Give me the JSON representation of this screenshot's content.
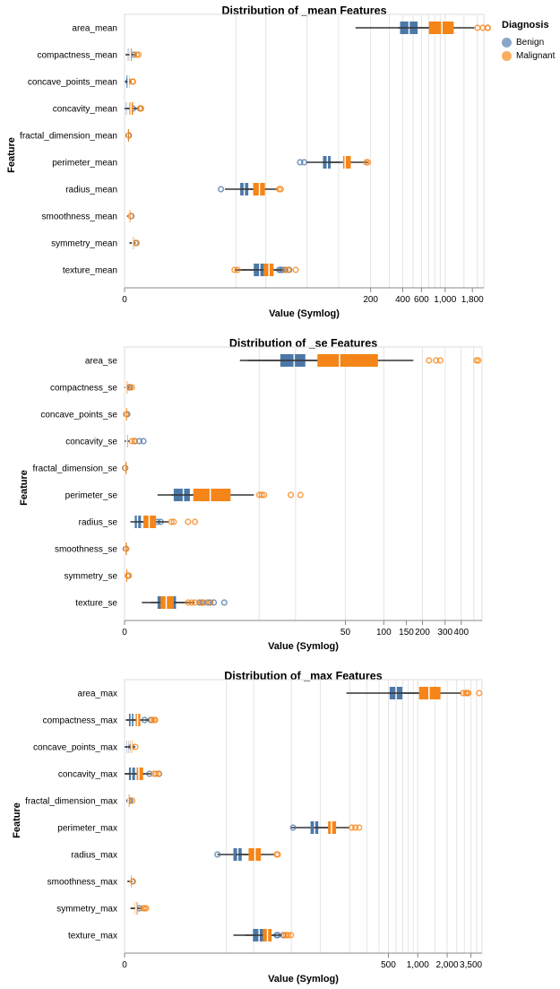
{
  "legend": {
    "title": "Diagnosis",
    "items": [
      {
        "label": "Benign",
        "color": "#4c78a8"
      },
      {
        "label": "Malignant",
        "color": "#f58518"
      }
    ]
  },
  "colors": {
    "benign": "#4c78a8",
    "malignant": "#f58518"
  },
  "chart_data": [
    {
      "type": "boxplot",
      "title": "Distribution of _mean Features",
      "xlabel": "Value (Symlog)",
      "ylabel": "Feature",
      "x_scale": "symlog",
      "x_ticks": [
        "0",
        "200",
        "400",
        "600",
        "1,000",
        "1,800"
      ],
      "grid": true,
      "categories": [
        "area_mean",
        "compactness_mean",
        "concave_points_mean",
        "concavity_mean",
        "fractal_dimension_mean",
        "perimeter_mean",
        "radius_mean",
        "smoothness_mean",
        "symmetry_mean",
        "texture_mean"
      ],
      "series": [
        {
          "name": "Benign",
          "boxes": [
            {
              "min": 144,
              "q1": 378,
              "median": 459,
              "q3": 552,
              "max": 992,
              "outliers": []
            },
            {
              "min": 0.02,
              "q1": 0.06,
              "median": 0.08,
              "q3": 0.1,
              "max": 0.2,
              "outliers": [
                0.22
              ]
            },
            {
              "min": 0,
              "q1": 0.015,
              "median": 0.025,
              "q3": 0.033,
              "max": 0.07,
              "outliers": [
                0.085
              ]
            },
            {
              "min": 0,
              "q1": 0.02,
              "median": 0.04,
              "q3": 0.06,
              "max": 0.13,
              "outliers": [
                0.2,
                0.4
              ]
            },
            {
              "min": 0.05,
              "q1": 0.059,
              "median": 0.062,
              "q3": 0.066,
              "max": 0.08,
              "outliers": [
                0.09,
                0.095
              ]
            },
            {
              "min": 49,
              "q1": 71,
              "median": 78,
              "q3": 84,
              "max": 103,
              "outliers": [
                43,
                47
              ]
            },
            {
              "min": 7.7,
              "q1": 11.1,
              "median": 12.2,
              "q3": 13.4,
              "max": 16.8,
              "outliers": [
                6.98,
                17.9
              ]
            },
            {
              "min": 0.053,
              "q1": 0.086,
              "median": 0.091,
              "q3": 0.1,
              "max": 0.13,
              "outliers": [
                0.16
              ]
            },
            {
              "min": 0.11,
              "q1": 0.158,
              "median": 0.172,
              "q3": 0.19,
              "max": 0.24,
              "outliers": [
                0.27
              ]
            },
            {
              "min": 9.7,
              "q1": 15.2,
              "median": 17.4,
              "q3": 19.8,
              "max": 26,
              "outliers": [
                27,
                28,
                29,
                31,
                33.8
              ]
            }
          ]
        },
        {
          "name": "Malignant",
          "boxes": [
            {
              "min": 361,
              "q1": 705,
              "median": 932,
              "q3": 1204,
              "max": 1878,
              "outliers": [
                2010,
                2250,
                2499,
                2501
              ]
            },
            {
              "min": 0.05,
              "q1": 0.11,
              "median": 0.13,
              "q3": 0.17,
              "max": 0.28,
              "outliers": [
                0.3,
                0.35
              ]
            },
            {
              "min": 0.02,
              "q1": 0.065,
              "median": 0.086,
              "q3": 0.103,
              "max": 0.16,
              "outliers": [
                0.19,
                0.2
              ]
            },
            {
              "min": 0.02,
              "q1": 0.11,
              "median": 0.15,
              "q3": 0.2,
              "max": 0.36,
              "outliers": [
                0.4,
                0.43
              ]
            },
            {
              "min": 0.05,
              "q1": 0.056,
              "median": 0.061,
              "q3": 0.067,
              "max": 0.08,
              "outliers": [
                0.097
              ]
            },
            {
              "min": 71,
              "q1": 110,
              "median": 115,
              "q3": 130,
              "max": 188,
              "outliers": [
                182,
                188
              ]
            },
            {
              "min": 11,
              "q1": 15,
              "median": 17.3,
              "q3": 19.6,
              "max": 26,
              "outliers": [
                27,
                28
              ]
            },
            {
              "min": 0.073,
              "q1": 0.09,
              "median": 0.102,
              "q3": 0.11,
              "max": 0.14,
              "outliers": [
                0.145
              ]
            },
            {
              "min": 0.13,
              "q1": 0.174,
              "median": 0.19,
              "q3": 0.21,
              "max": 0.27,
              "outliers": [
                0.3
              ]
            },
            {
              "min": 10,
              "q1": 19,
              "median": 21.5,
              "q3": 23.8,
              "max": 30,
              "outliers": [
                9.7,
                10.4,
                31,
                33,
                39
              ]
            }
          ]
        }
      ]
    },
    {
      "type": "boxplot",
      "title": "Distribution of _se Features",
      "xlabel": "Value (Symlog)",
      "ylabel": "Feature",
      "x_scale": "symlog",
      "x_ticks": [
        "0",
        "50",
        "100",
        "150",
        "200",
        "300",
        "400"
      ],
      "grid": true,
      "categories": [
        "area_se",
        "compactness_se",
        "concave_points_se",
        "concavity_se",
        "fractal_dimension_se",
        "perimeter_se",
        "radius_se",
        "smoothness_se",
        "symmetry_se",
        "texture_se"
      ],
      "series": [
        {
          "name": "Benign",
          "boxes": [
            {
              "min": 6.8,
              "q1": 15,
              "median": 19.5,
              "q3": 24,
              "max": 77,
              "outliers": []
            },
            {
              "min": 0.002,
              "q1": 0.013,
              "median": 0.016,
              "q3": 0.027,
              "max": 0.06,
              "outliers": [
                0.08,
                0.1
              ]
            },
            {
              "min": 0,
              "q1": 0.007,
              "median": 0.009,
              "q3": 0.012,
              "max": 0.02,
              "outliers": [
                0.03,
                0.05
              ]
            },
            {
              "min": 0,
              "q1": 0.012,
              "median": 0.022,
              "q3": 0.03,
              "max": 0.07,
              "outliers": [
                0.2,
                0.3,
                0.4
              ]
            },
            {
              "min": 0.001,
              "q1": 0.002,
              "median": 0.003,
              "q3": 0.004,
              "max": 0.008,
              "outliers": [
                0.01
              ]
            },
            {
              "min": 0.8,
              "q1": 1.4,
              "median": 1.85,
              "q3": 2.2,
              "max": 3.6,
              "outliers": [
                5.0
              ]
            },
            {
              "min": 0.11,
              "q1": 0.2,
              "median": 0.26,
              "q3": 0.34,
              "max": 0.6,
              "outliers": [
                0.8,
                0.9
              ]
            },
            {
              "min": 0.002,
              "q1": 0.005,
              "median": 0.006,
              "q3": 0.008,
              "max": 0.012,
              "outliers": [
                0.02
              ]
            },
            {
              "min": 0.008,
              "q1": 0.015,
              "median": 0.019,
              "q3": 0.025,
              "max": 0.04,
              "outliers": [
                0.06
              ]
            },
            {
              "min": 0.36,
              "q1": 0.8,
              "median": 1.1,
              "q3": 1.5,
              "max": 2.5,
              "outliers": [
                2.8,
                3.0,
                3.4,
                3.6,
                3.9,
                4.9
              ]
            }
          ]
        },
        {
          "name": "Malignant",
          "boxes": [
            {
              "min": 8,
              "q1": 30,
              "median": 45,
              "q3": 90,
              "max": 170,
              "outliers": [
                225,
                255,
                275,
                525,
                542
              ]
            },
            {
              "min": 0.008,
              "q1": 0.02,
              "median": 0.03,
              "q3": 0.04,
              "max": 0.09,
              "outliers": [
                0.1,
                0.14
              ]
            },
            {
              "min": 0.006,
              "q1": 0.011,
              "median": 0.014,
              "q3": 0.018,
              "max": 0.03,
              "outliers": [
                0.04
              ]
            },
            {
              "min": 0.01,
              "q1": 0.03,
              "median": 0.04,
              "q3": 0.05,
              "max": 0.1,
              "outliers": [
                0.14,
                0.2
              ]
            },
            {
              "min": 0.001,
              "q1": 0.002,
              "median": 0.004,
              "q3": 0.005,
              "max": 0.008,
              "outliers": [
                0.012
              ]
            },
            {
              "min": 1.3,
              "q1": 2.4,
              "median": 3.6,
              "q3": 5.6,
              "max": 9,
              "outliers": [
                10,
                10.5,
                11,
                18.3,
                21.9
              ]
            },
            {
              "min": 0.2,
              "q1": 0.4,
              "median": 0.55,
              "q3": 0.75,
              "max": 1.2,
              "outliers": [
                1.3,
                1.4,
                2.1,
                2.5
              ]
            },
            {
              "min": 0.002,
              "q1": 0.005,
              "median": 0.006,
              "q3": 0.008,
              "max": 0.013,
              "outliers": [
                0.03
              ]
            },
            {
              "min": 0.008,
              "q1": 0.015,
              "median": 0.018,
              "q3": 0.024,
              "max": 0.04,
              "outliers": [
                0.06,
                0.08
              ]
            },
            {
              "min": 0.6,
              "q1": 0.9,
              "median": 1.1,
              "q3": 1.4,
              "max": 2,
              "outliers": [
                2.1,
                2.3,
                2.5,
                2.9,
                3.1,
                3.6
              ]
            }
          ]
        }
      ]
    },
    {
      "type": "boxplot",
      "title": "Distribution of _max Features",
      "xlabel": "Value (Symlog)",
      "ylabel": "Feature",
      "x_scale": "symlog",
      "x_ticks": [
        "0",
        "500",
        "1,000",
        "2,000",
        "3,500"
      ],
      "grid": true,
      "categories": [
        "area_max",
        "compactness_max",
        "concave_points_max",
        "concavity_max",
        "fractal_dimension_max",
        "perimeter_max",
        "radius_max",
        "smoothness_max",
        "symmetry_max",
        "texture_max"
      ],
      "series": [
        {
          "name": "Benign",
          "boxes": [
            {
              "min": 185,
              "q1": 515,
              "median": 600,
              "q3": 695,
              "max": 1210,
              "outliers": []
            },
            {
              "min": 0.027,
              "q1": 0.11,
              "median": 0.17,
              "q3": 0.23,
              "max": 0.45,
              "outliers": [
                0.6,
                0.85
              ]
            },
            {
              "min": 0,
              "q1": 0.05,
              "median": 0.075,
              "q3": 0.1,
              "max": 0.17,
              "outliers": [
                0.18
              ]
            },
            {
              "min": 0,
              "q1": 0.11,
              "median": 0.18,
              "q3": 0.28,
              "max": 0.6,
              "outliers": [
                0.8,
                1.25
              ]
            },
            {
              "min": 0.055,
              "q1": 0.072,
              "median": 0.078,
              "q3": 0.085,
              "max": 0.11,
              "outliers": [
                0.12,
                0.14
              ]
            },
            {
              "min": 50,
              "q1": 79,
              "median": 87,
              "q3": 95,
              "max": 130,
              "outliers": [
                52
              ]
            },
            {
              "min": 7.9,
              "q1": 12,
              "median": 13.4,
              "q3": 14.8,
              "max": 19.8,
              "outliers": [
                7.93
              ]
            },
            {
              "min": 0.07,
              "q1": 0.11,
              "median": 0.125,
              "q3": 0.138,
              "max": 0.19,
              "outliers": [
                0.2
              ]
            },
            {
              "min": 0.16,
              "q1": 0.25,
              "median": 0.27,
              "q3": 0.3,
              "max": 0.4,
              "outliers": [
                0.42
              ]
            },
            {
              "min": 12,
              "q1": 19.6,
              "median": 22.8,
              "q3": 26.5,
              "max": 34,
              "outliers": [
                35,
                36,
                41
              ]
            }
          ]
        },
        {
          "name": "Malignant",
          "boxes": [
            {
              "min": 508,
              "q1": 1031,
              "median": 1304,
              "q3": 1709,
              "max": 2800,
              "outliers": [
                2900,
                3100,
                3200,
                3300,
                4254
              ]
            },
            {
              "min": 0.05,
              "q1": 0.3,
              "median": 0.36,
              "q3": 0.45,
              "max": 0.8,
              "outliers": [
                0.9,
                1.0,
                1.06
              ]
            },
            {
              "min": 0.03,
              "q1": 0.15,
              "median": 0.18,
              "q3": 0.21,
              "max": 0.29,
              "outliers": [
                0.291
              ]
            },
            {
              "min": 0.02,
              "q1": 0.33,
              "median": 0.4,
              "q3": 0.55,
              "max": 0.9,
              "outliers": [
                1.0,
                1.1,
                1.25
              ]
            },
            {
              "min": 0.055,
              "q1": 0.076,
              "median": 0.087,
              "q3": 0.1,
              "max": 0.15,
              "outliers": [
                0.2
              ]
            },
            {
              "min": 85,
              "q1": 120,
              "median": 130,
              "q3": 145,
              "max": 200,
              "outliers": [
                210,
                229,
                251
              ]
            },
            {
              "min": 12.8,
              "q1": 17.6,
              "median": 20.6,
              "q3": 23.8,
              "max": 33,
              "outliers": [
                35,
                36
              ]
            },
            {
              "min": 0.08,
              "q1": 0.13,
              "median": 0.144,
              "q3": 0.156,
              "max": 0.2,
              "outliers": [
                0.22
              ]
            },
            {
              "min": 0.15,
              "q1": 0.28,
              "median": 0.31,
              "q3": 0.36,
              "max": 0.5,
              "outliers": [
                0.55,
                0.6,
                0.66
              ]
            },
            {
              "min": 16,
              "q1": 25,
              "median": 28,
              "q3": 31,
              "max": 40,
              "outliers": [
                42,
                44,
                46,
                49.5
              ]
            }
          ]
        }
      ]
    }
  ]
}
